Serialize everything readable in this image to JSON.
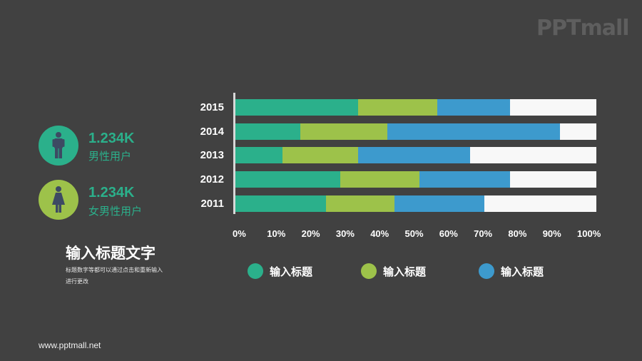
{
  "logo": "PPTmall",
  "stats": [
    {
      "value": "1.234K",
      "label": "男性用户",
      "icon": "male-person-icon",
      "color": "#2bb08b"
    },
    {
      "value": "1.234K",
      "label": "女男性用户",
      "icon": "female-person-icon",
      "color": "#9dc24a"
    }
  ],
  "text_block": {
    "title": "输入标题文字",
    "description": "标题数字等都可以通过点击和重新输入进行更改"
  },
  "footer_url": "www.pptmall.net",
  "colors": {
    "series1": "#2bb08b",
    "series2": "#9dc24a",
    "series3": "#3d9acd",
    "remainder": "#f8f8f8",
    "background": "#414141"
  },
  "chart_data": {
    "type": "bar",
    "orientation": "horizontal",
    "stacked": true,
    "title": "",
    "categories": [
      "2015",
      "2014",
      "2013",
      "2012",
      "2011"
    ],
    "series": [
      {
        "name": "输入标题",
        "color": "#2bb08b",
        "values": [
          34,
          18,
          13,
          29,
          25
        ]
      },
      {
        "name": "输入标题",
        "color": "#9dc24a",
        "values": [
          22,
          24,
          21,
          22,
          19
        ]
      },
      {
        "name": "输入标题",
        "color": "#3d9acd",
        "values": [
          20,
          48,
          31,
          25,
          25
        ]
      }
    ],
    "xlabel": "",
    "ylabel": "",
    "xlim": [
      0,
      100
    ],
    "x_ticks": [
      "0%",
      "10%",
      "20%",
      "30%",
      "40%",
      "50%",
      "60%",
      "70%",
      "80%",
      "90%",
      "100%"
    ],
    "legend_position": "bottom",
    "grid": false
  }
}
